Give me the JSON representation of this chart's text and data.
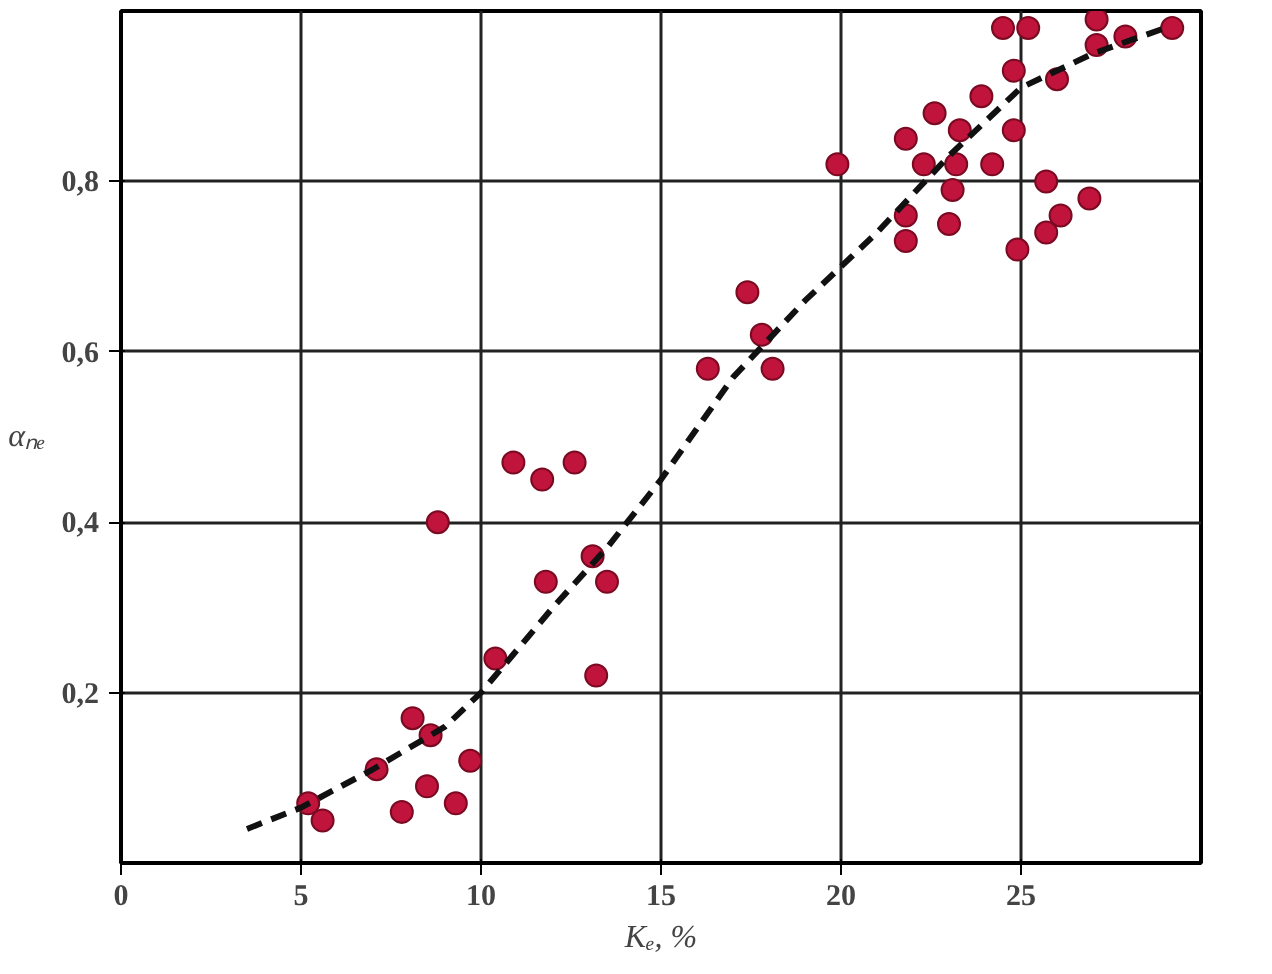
{
  "chart_data": {
    "type": "scatter",
    "xlabel": "Kₑ, %",
    "ylabel": "αₙₑ",
    "xlim": [
      0,
      30
    ],
    "ylim": [
      0,
      1
    ],
    "xticks": [
      0,
      5,
      10,
      15,
      20,
      25
    ],
    "yticks": [
      {
        "value": 0.2,
        "label": "0,2"
      },
      {
        "value": 0.4,
        "label": "0,4"
      },
      {
        "value": 0.6,
        "label": "0,6"
      },
      {
        "value": 0.8,
        "label": "0,8"
      }
    ],
    "grid": true,
    "series": [
      {
        "color": "#c0143c",
        "marker": "circle",
        "x": [
          5.2,
          5.6,
          7.1,
          8.1,
          8.6,
          7.8,
          8.5,
          9.3,
          9.7,
          8.8,
          10.4,
          10.9,
          11.7,
          12.6,
          11.8,
          13.1,
          13.5,
          13.2,
          16.3,
          17.4,
          17.8,
          18.1,
          19.9,
          21.8,
          22.6,
          23.9,
          22.3,
          23.3,
          23.2,
          24.2,
          23.1,
          21.8,
          21.8,
          23.0,
          24.8,
          24.8,
          24.5,
          25.2,
          26.0,
          27.1,
          27.1,
          27.9,
          29.2,
          25.7,
          26.9,
          26.1,
          25.7,
          24.9
        ],
        "values": [
          0.07,
          0.05,
          0.11,
          0.17,
          0.15,
          0.06,
          0.09,
          0.07,
          0.12,
          0.4,
          0.24,
          0.47,
          0.45,
          0.47,
          0.33,
          0.36,
          0.33,
          0.22,
          0.58,
          0.67,
          0.62,
          0.58,
          0.82,
          0.85,
          0.88,
          0.9,
          0.82,
          0.86,
          0.82,
          0.82,
          0.79,
          0.76,
          0.73,
          0.75,
          0.86,
          0.93,
          0.98,
          0.98,
          0.92,
          0.99,
          0.96,
          0.97,
          0.98,
          0.8,
          0.78,
          0.76,
          0.74,
          0.72
        ]
      },
      {
        "type": "line",
        "color": "#111111",
        "line_style": "dashed",
        "marker": "none",
        "x": [
          3.5,
          5,
          7,
          9,
          10,
          11,
          12,
          13.5,
          15,
          17,
          19,
          21,
          23,
          25,
          27,
          29
        ],
        "values": [
          0.04,
          0.065,
          0.11,
          0.16,
          0.2,
          0.25,
          0.3,
          0.37,
          0.45,
          0.57,
          0.66,
          0.74,
          0.83,
          0.91,
          0.95,
          0.98
        ]
      }
    ]
  }
}
